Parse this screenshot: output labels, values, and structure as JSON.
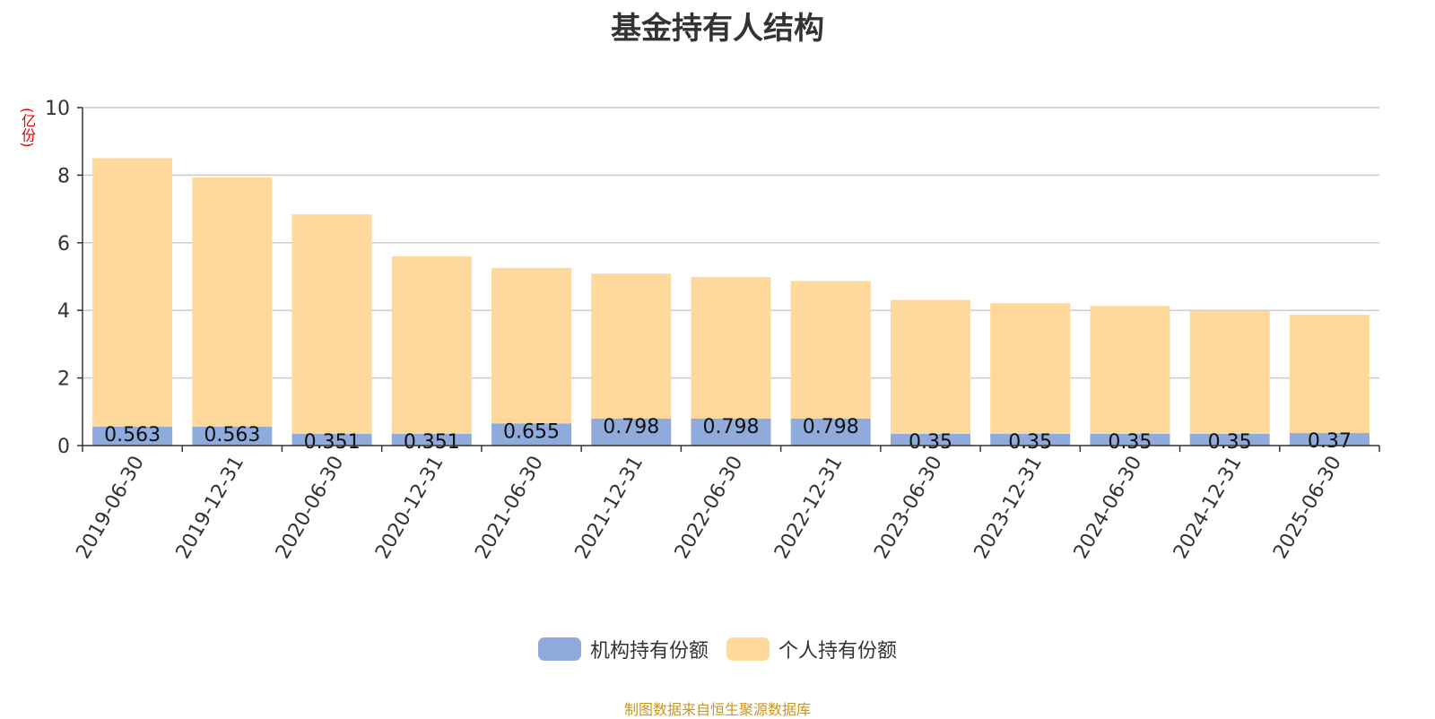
{
  "chart_data": {
    "type": "bar",
    "stacked": true,
    "title": "基金持有人结构",
    "ylabel": "(亿份)",
    "ylim": [
      0,
      10
    ],
    "yticks": [
      0,
      2,
      4,
      6,
      8,
      10
    ],
    "grid": true,
    "legend_position": "bottom",
    "categories": [
      "2019-06-30",
      "2019-12-31",
      "2020-06-30",
      "2020-12-31",
      "2021-06-30",
      "2021-12-31",
      "2022-06-30",
      "2022-12-31",
      "2023-06-30",
      "2023-12-31",
      "2024-06-30",
      "2024-12-31",
      "2025-06-30"
    ],
    "series": [
      {
        "name": "机构持有份额",
        "color": "#8eabdb",
        "values": [
          0.563,
          0.563,
          0.351,
          0.351,
          0.655,
          0.798,
          0.798,
          0.798,
          0.35,
          0.35,
          0.35,
          0.35,
          0.37
        ],
        "labels": [
          "0.563",
          "0.563",
          "0.351",
          "0.351",
          "0.655",
          "0.798",
          "0.798",
          "0.798",
          "0.35",
          "0.35",
          "0.35",
          "0.35",
          "0.37"
        ]
      },
      {
        "name": "个人持有份额",
        "color": "#ffd89b",
        "values": [
          7.94,
          7.37,
          6.49,
          5.25,
          4.6,
          4.29,
          4.19,
          4.07,
          3.96,
          3.86,
          3.78,
          3.64,
          3.5
        ]
      }
    ]
  },
  "footer": "制图数据来自恒生聚源数据库"
}
